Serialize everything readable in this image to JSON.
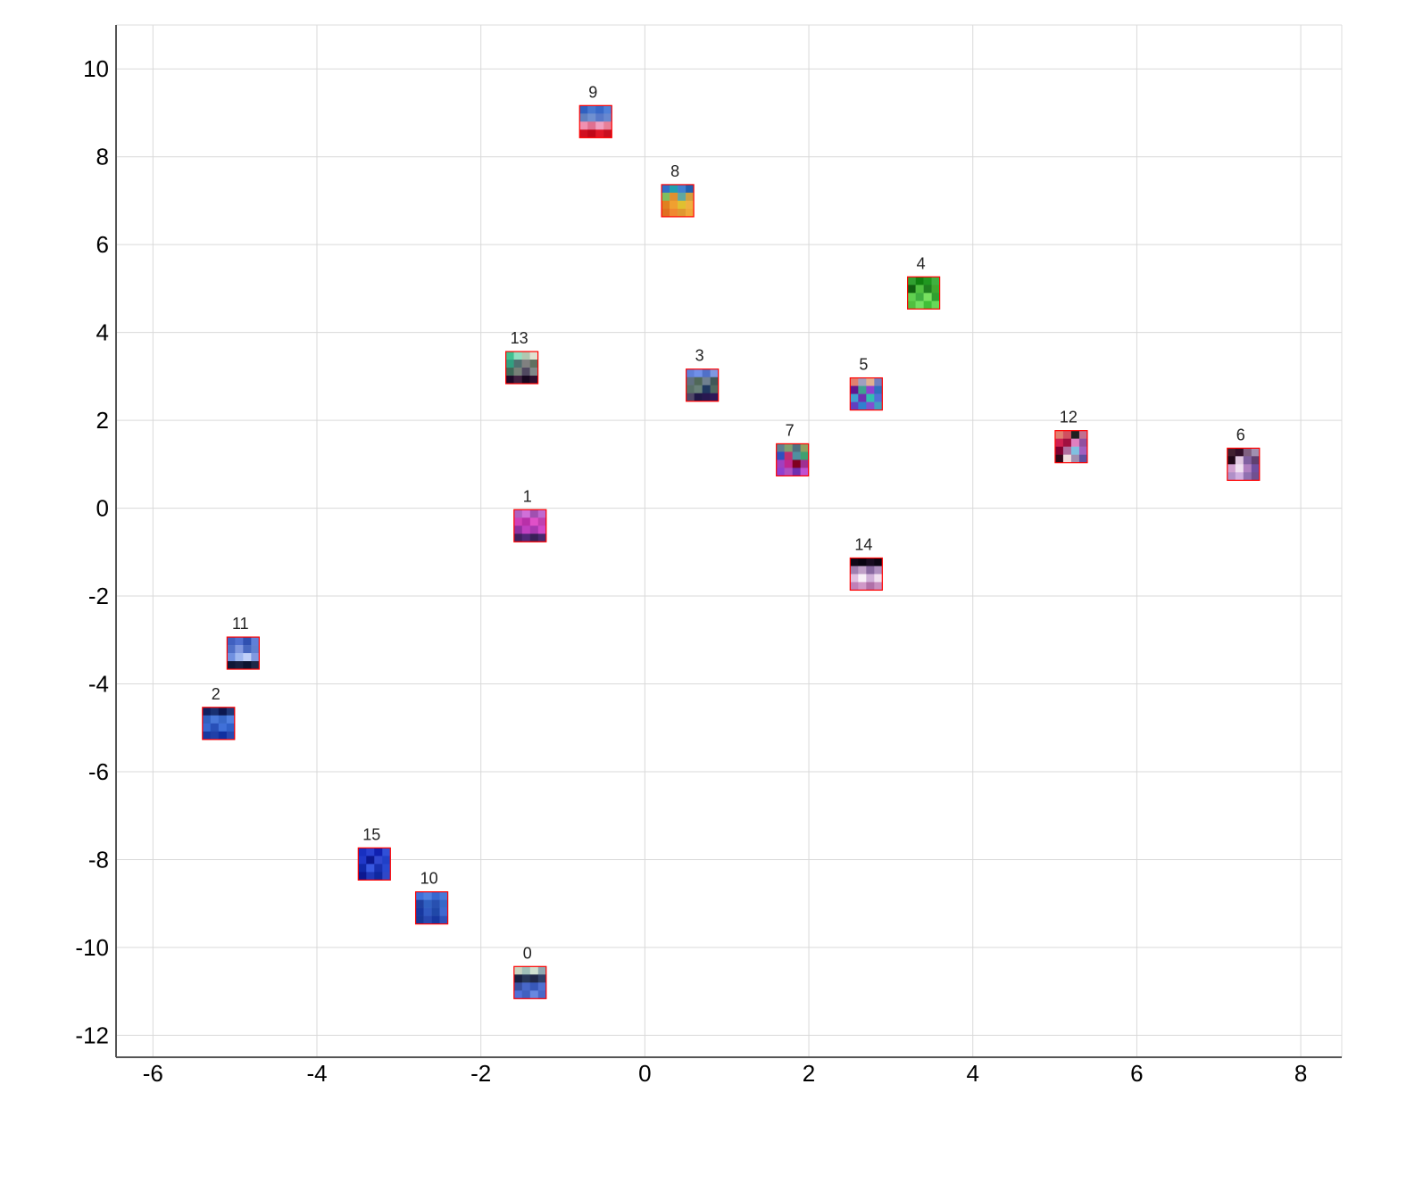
{
  "chart_data": {
    "type": "scatter",
    "title": "",
    "xlabel": "",
    "ylabel": "",
    "xlim": [
      -6.45,
      8.5
    ],
    "ylim": [
      -12.5,
      11.0
    ],
    "x_ticks": [
      -6,
      -4,
      -2,
      0,
      2,
      4,
      6,
      8
    ],
    "y_ticks": [
      -12,
      -10,
      -8,
      -6,
      -4,
      -2,
      0,
      2,
      4,
      6,
      8,
      10
    ],
    "grid": true,
    "marker": "image thumbnail (4x4 pixel patch) with red border",
    "marker_border_color": "#ff0000",
    "points": [
      {
        "label": "0",
        "x": -1.4,
        "y": -10.8,
        "rows": [
          [
            "#c8d4c0",
            "#a0c0b8",
            "#d0e0d0",
            "#90a8b0"
          ],
          [
            "#182040",
            "#283858",
            "#202848",
            "#304068"
          ],
          [
            "#3850a0",
            "#4868c8",
            "#3858b8",
            "#5070d0"
          ],
          [
            "#5070d8",
            "#4060c0",
            "#6888e0",
            "#4868c8"
          ]
        ]
      },
      {
        "label": "1",
        "x": -1.4,
        "y": -0.4,
        "rows": [
          [
            "#b060c0",
            "#d070d8",
            "#a050b0",
            "#c068d0"
          ],
          [
            "#d040b8",
            "#b830a8",
            "#e050c8",
            "#c040b0"
          ],
          [
            "#9030a0",
            "#c040c0",
            "#a838b0",
            "#d048c8"
          ],
          [
            "#402060",
            "#502878",
            "#382058",
            "#482870"
          ]
        ]
      },
      {
        "label": "2",
        "x": -5.2,
        "y": -4.9,
        "rows": [
          [
            "#102060",
            "#183070",
            "#0c1850",
            "#203878"
          ],
          [
            "#3060c0",
            "#4878d8",
            "#3868c8",
            "#5080e0"
          ],
          [
            "#3868d0",
            "#2850b8",
            "#4070d8",
            "#3060c8"
          ],
          [
            "#1838a0",
            "#2040a8",
            "#1030a0",
            "#2848b0"
          ]
        ]
      },
      {
        "label": "3",
        "x": 0.7,
        "y": 2.8,
        "rows": [
          [
            "#6080d8",
            "#7090e8",
            "#5070c8",
            "#8098e0"
          ],
          [
            "#607080",
            "#506858",
            "#708090",
            "#405858"
          ],
          [
            "#587068",
            "#688078",
            "#203860",
            "#506860"
          ],
          [
            "#504868",
            "#201848",
            "#281850",
            "#301858"
          ]
        ]
      },
      {
        "label": "4",
        "x": 3.4,
        "y": 4.9,
        "rows": [
          [
            "#30a030",
            "#108010",
            "#209820",
            "#40b040"
          ],
          [
            "#106010",
            "#50c040",
            "#208020",
            "#40a830"
          ],
          [
            "#60d050",
            "#40b040",
            "#78e060",
            "#30a030"
          ],
          [
            "#50c040",
            "#70e060",
            "#40c038",
            "#68d858"
          ]
        ]
      },
      {
        "label": "5",
        "x": 2.7,
        "y": 2.6,
        "rows": [
          [
            "#e08070",
            "#a0a0c0",
            "#e0b090",
            "#7080c0"
          ],
          [
            "#601890",
            "#40a090",
            "#9040d0",
            "#3070c0"
          ],
          [
            "#40a0d0",
            "#7030b0",
            "#30c0b0",
            "#5070d8"
          ],
          [
            "#6040c0",
            "#3080d0",
            "#8050d0",
            "#40a0c0"
          ]
        ]
      },
      {
        "label": "6",
        "x": 7.3,
        "y": 1.0,
        "rows": [
          [
            "#402030",
            "#301028",
            "#806080",
            "#a090b0"
          ],
          [
            "#200818",
            "#e0c8e0",
            "#8060a0",
            "#604070"
          ],
          [
            "#d0a0d0",
            "#f0e0f0",
            "#b080c0",
            "#7050a0"
          ],
          [
            "#b090c8",
            "#d0b0e0",
            "#9070b0",
            "#705090"
          ]
        ]
      },
      {
        "label": "7",
        "x": 1.8,
        "y": 1.1,
        "rows": [
          [
            "#608090",
            "#80a070",
            "#507080",
            "#90a060"
          ],
          [
            "#3050c0",
            "#c03070",
            "#5090a0",
            "#40a070"
          ],
          [
            "#a040c0",
            "#c02890",
            "#800020",
            "#a03090"
          ],
          [
            "#9040d0",
            "#b050c0",
            "#7030b0",
            "#c050d0"
          ]
        ]
      },
      {
        "label": "8",
        "x": 0.4,
        "y": 7.0,
        "rows": [
          [
            "#3070c8",
            "#20a0b0",
            "#4080d0",
            "#2060b0"
          ],
          [
            "#80c060",
            "#e09030",
            "#60a8a0",
            "#d0a040"
          ],
          [
            "#e08020",
            "#f0a030",
            "#e0c030",
            "#f0b040"
          ],
          [
            "#e07020",
            "#f08830",
            "#e09830",
            "#f0a838"
          ]
        ]
      },
      {
        "label": "9",
        "x": -0.6,
        "y": 8.8,
        "rows": [
          [
            "#3060c0",
            "#4878d0",
            "#3868c8",
            "#5080d8"
          ],
          [
            "#6080c0",
            "#7090d0",
            "#5878c8",
            "#6888d0"
          ],
          [
            "#f090b0",
            "#e07090",
            "#f0a0c0",
            "#e88098"
          ],
          [
            "#d01020",
            "#c00818",
            "#e01828",
            "#c81020"
          ]
        ]
      },
      {
        "label": "10",
        "x": -2.6,
        "y": -9.1,
        "rows": [
          [
            "#4070d8",
            "#5080e0",
            "#3868d0",
            "#4878d8"
          ],
          [
            "#2040a0",
            "#3060c0",
            "#2850b0",
            "#3868c8"
          ],
          [
            "#1838a0",
            "#3058c0",
            "#2048a8",
            "#4068d0"
          ],
          [
            "#183898",
            "#2848b0",
            "#1838a0",
            "#3050b8"
          ]
        ]
      },
      {
        "label": "11",
        "x": -4.9,
        "y": -3.3,
        "rows": [
          [
            "#4060c0",
            "#5070d0",
            "#3050b0",
            "#6080d8"
          ],
          [
            "#5070c8",
            "#8098e0",
            "#4868c0",
            "#6080d0"
          ],
          [
            "#7090e0",
            "#a0b8f0",
            "#c0d0f8",
            "#8098e0"
          ],
          [
            "#101838",
            "#182040",
            "#0c1430",
            "#202848"
          ]
        ]
      },
      {
        "label": "12",
        "x": 5.2,
        "y": 1.4,
        "rows": [
          [
            "#e08070",
            "#d05060",
            "#202020",
            "#c07090"
          ],
          [
            "#d02050",
            "#a01040",
            "#e080c0",
            "#9050a0"
          ],
          [
            "#800030",
            "#b070a0",
            "#80c0e0",
            "#a060c0"
          ],
          [
            "#300818",
            "#f0e0e0",
            "#a090b0",
            "#6050a0"
          ]
        ]
      },
      {
        "label": "13",
        "x": -1.5,
        "y": 3.2,
        "rows": [
          [
            "#40c090",
            "#90e0c0",
            "#b0c8b0",
            "#e0e0d0"
          ],
          [
            "#30a080",
            "#507070",
            "#808080",
            "#607060"
          ],
          [
            "#406858",
            "#788078",
            "#504860",
            "#808888"
          ],
          [
            "#200828",
            "#402040",
            "#180820",
            "#301030"
          ]
        ]
      },
      {
        "label": "14",
        "x": 2.7,
        "y": -1.5,
        "rows": [
          [
            "#100818",
            "#080410",
            "#180c20",
            "#0c0614"
          ],
          [
            "#a080b0",
            "#c0a0c8",
            "#8868a0",
            "#b090c0"
          ],
          [
            "#e0c0e0",
            "#f8f0f8",
            "#d0b0d8",
            "#f0e0f0"
          ],
          [
            "#c080b8",
            "#d098c8",
            "#b070a8",
            "#c890c0"
          ]
        ]
      },
      {
        "label": "15",
        "x": -3.3,
        "y": -8.1,
        "rows": [
          [
            "#1830c0",
            "#2840d0",
            "#1020b0",
            "#3050d8"
          ],
          [
            "#2038c8",
            "#0c1890",
            "#3048d0",
            "#2040c8"
          ],
          [
            "#1028a8",
            "#3858e0",
            "#1830b0",
            "#2848d0"
          ],
          [
            "#0c1890",
            "#2038b8",
            "#1028a0",
            "#3048c8"
          ]
        ]
      }
    ]
  }
}
